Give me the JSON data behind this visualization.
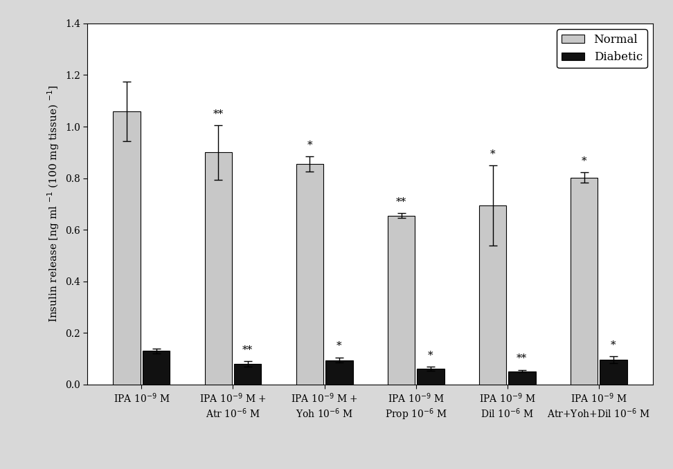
{
  "categories": [
    "IPA 10$^{-9}$ M",
    "IPA 10$^{-9}$ M +\nAtr 10$^{-6}$ M",
    "IPA 10$^{-9}$ M +\nYoh 10$^{-6}$ M",
    "IPA 10$^{-9}$ M\nProp 10$^{-6}$ M",
    "IPA 10$^{-9}$ M\nDil 10$^{-6}$ M",
    "IPA 10$^{-9}$ M\nAtr+Yoh+Dil 10$^{-6}$ M"
  ],
  "normal_values": [
    1.06,
    0.9,
    0.855,
    0.655,
    0.695,
    0.802
  ],
  "diabetic_values": [
    0.13,
    0.08,
    0.095,
    0.062,
    0.052,
    0.097
  ],
  "normal_errors": [
    0.115,
    0.105,
    0.03,
    0.01,
    0.155,
    0.02
  ],
  "diabetic_errors": [
    0.01,
    0.01,
    0.01,
    0.008,
    0.005,
    0.013
  ],
  "normal_color": "#c8c8c8",
  "diabetic_color": "#111111",
  "normal_label": "Normal",
  "diabetic_label": "Diabetic",
  "ylabel": "Insulin release [ng ml $^{-1}$ (100 mg tissue) $^{-1}$]",
  "ylim": [
    0,
    1.4
  ],
  "yticks": [
    0,
    0.2,
    0.4,
    0.6,
    0.8,
    1.0,
    1.2,
    1.4
  ],
  "normal_sig": [
    "",
    "**",
    "*",
    "**",
    "*",
    "*"
  ],
  "diabetic_sig": [
    "",
    "**",
    "*",
    "*",
    "**",
    "*"
  ],
  "outer_bg": "#d8d8d8",
  "plot_bg": "#ffffff",
  "bar_width": 0.3,
  "legend_fontsize": 12,
  "tick_fontsize": 10,
  "ylabel_fontsize": 11,
  "star_fontsize": 11
}
